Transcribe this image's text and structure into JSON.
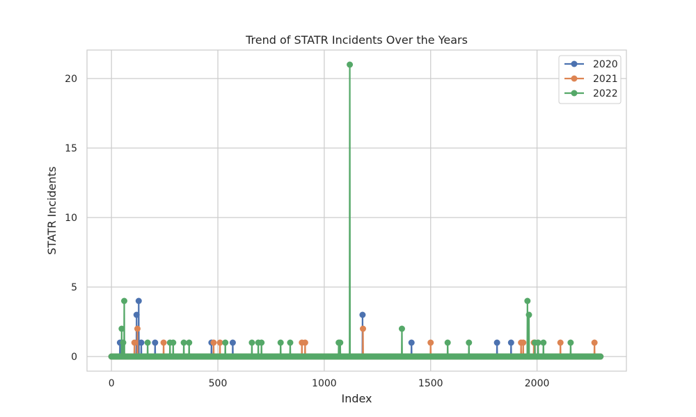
{
  "chart_data": {
    "type": "line",
    "title": "Trend of STATR Incidents Over the Years",
    "xlabel": "Index",
    "ylabel": "STATR Incidents",
    "xlim": [
      -115,
      2420
    ],
    "ylim": [
      -1.05,
      22.05
    ],
    "xticks": [
      0,
      500,
      1000,
      1500,
      2000
    ],
    "yticks": [
      0,
      5,
      10,
      15,
      20
    ],
    "x_max": 2300,
    "grid": true,
    "legend_position": "top-right",
    "colors": {
      "2020": "#4c72b0",
      "2021": "#dd8452",
      "2022": "#55a868"
    },
    "series": [
      {
        "name": "2020",
        "nonzero_points": [
          {
            "x": 40,
            "y": 1
          },
          {
            "x": 118,
            "y": 3
          },
          {
            "x": 128,
            "y": 4
          },
          {
            "x": 140,
            "y": 1
          },
          {
            "x": 205,
            "y": 1
          },
          {
            "x": 470,
            "y": 1
          },
          {
            "x": 570,
            "y": 1
          },
          {
            "x": 1180,
            "y": 3
          },
          {
            "x": 1410,
            "y": 1
          },
          {
            "x": 1812,
            "y": 1
          },
          {
            "x": 1878,
            "y": 1
          }
        ]
      },
      {
        "name": "2021",
        "nonzero_points": [
          {
            "x": 108,
            "y": 1
          },
          {
            "x": 122,
            "y": 2
          },
          {
            "x": 245,
            "y": 1
          },
          {
            "x": 480,
            "y": 1
          },
          {
            "x": 510,
            "y": 1
          },
          {
            "x": 895,
            "y": 1
          },
          {
            "x": 910,
            "y": 1
          },
          {
            "x": 1182,
            "y": 2
          },
          {
            "x": 1500,
            "y": 1
          },
          {
            "x": 1925,
            "y": 1
          },
          {
            "x": 1935,
            "y": 1
          },
          {
            "x": 1985,
            "y": 1
          },
          {
            "x": 2110,
            "y": 1
          },
          {
            "x": 2270,
            "y": 1
          }
        ]
      },
      {
        "name": "2022",
        "nonzero_points": [
          {
            "x": 48,
            "y": 2
          },
          {
            "x": 55,
            "y": 1
          },
          {
            "x": 60,
            "y": 4
          },
          {
            "x": 170,
            "y": 1
          },
          {
            "x": 275,
            "y": 1
          },
          {
            "x": 290,
            "y": 1
          },
          {
            "x": 340,
            "y": 1
          },
          {
            "x": 365,
            "y": 1
          },
          {
            "x": 535,
            "y": 1
          },
          {
            "x": 660,
            "y": 1
          },
          {
            "x": 690,
            "y": 1
          },
          {
            "x": 705,
            "y": 1
          },
          {
            "x": 795,
            "y": 1
          },
          {
            "x": 840,
            "y": 1
          },
          {
            "x": 1068,
            "y": 1
          },
          {
            "x": 1075,
            "y": 1
          },
          {
            "x": 1120,
            "y": 21
          },
          {
            "x": 1365,
            "y": 2
          },
          {
            "x": 1580,
            "y": 1
          },
          {
            "x": 1680,
            "y": 1
          },
          {
            "x": 1955,
            "y": 4
          },
          {
            "x": 1962,
            "y": 3
          },
          {
            "x": 1990,
            "y": 1
          },
          {
            "x": 2005,
            "y": 1
          },
          {
            "x": 2030,
            "y": 1
          },
          {
            "x": 2158,
            "y": 1
          }
        ]
      }
    ]
  }
}
